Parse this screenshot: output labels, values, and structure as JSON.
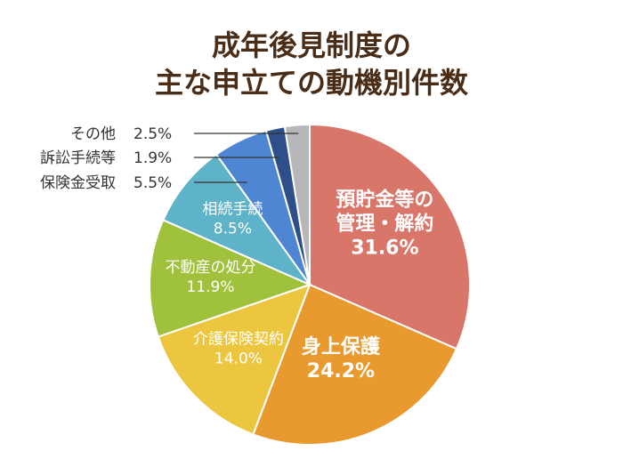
{
  "chart_data": {
    "type": "pie",
    "title_lines": [
      "成年後見制度の",
      "主な申立ての動機別件数"
    ],
    "slices": [
      {
        "label": "預貯金等の\n管理・解約",
        "value": 31.6,
        "value_label": "31.6%",
        "color": "#d9766a"
      },
      {
        "label": "身上保護",
        "value": 24.2,
        "value_label": "24.2%",
        "color": "#e89a2e"
      },
      {
        "label": "介護保険契約",
        "value": 14.0,
        "value_label": "14.0%",
        "color": "#ecc63e"
      },
      {
        "label": "不動産の処分",
        "value": 11.9,
        "value_label": "11.9%",
        "color": "#9fc13c"
      },
      {
        "label": "相続手続",
        "value": 8.5,
        "value_label": "8.5%",
        "color": "#5fb3c9"
      },
      {
        "label": "保険金受取",
        "value": 5.5,
        "value_label": "5.5%",
        "color": "#4f86d4"
      },
      {
        "label": "訴訟手続等",
        "value": 1.9,
        "value_label": "1.9%",
        "color": "#2f4f8a"
      },
      {
        "label": "その他",
        "value": 2.5,
        "value_label": "2.5%",
        "color": "#b7b7b7"
      }
    ],
    "legend": "outside-left-callouts"
  }
}
